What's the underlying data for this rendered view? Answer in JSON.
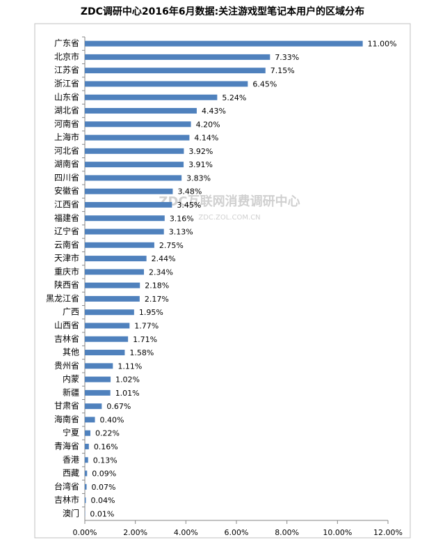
{
  "chart_data": {
    "type": "bar",
    "orientation": "horizontal",
    "title": "ZDC调研中心2016年6月数据:关注游戏型笔记本用户的区域分布",
    "watermark": [
      "ZDC互联网消费调研中心",
      "ZDC.ZOL.COM.CN"
    ],
    "categories": [
      "广东省",
      "北京市",
      "江苏省",
      "浙江省",
      "山东省",
      "湖北省",
      "河南省",
      "上海市",
      "河北省",
      "湖南省",
      "四川省",
      "安徽省",
      "江西省",
      "福建省",
      "辽宁省",
      "云南省",
      "天津市",
      "重庆市",
      "陕西省",
      "黑龙江省",
      "广西",
      "山西省",
      "吉林省",
      "其他",
      "贵州省",
      "内蒙",
      "新疆",
      "甘肃省",
      "海南省",
      "宁夏",
      "青海省",
      "香港",
      "西藏",
      "台湾省",
      "吉林市",
      "澳门"
    ],
    "values": [
      11.0,
      7.33,
      7.15,
      6.45,
      5.24,
      4.43,
      4.2,
      4.14,
      3.92,
      3.91,
      3.83,
      3.48,
      3.45,
      3.16,
      3.13,
      2.75,
      2.44,
      2.34,
      2.18,
      2.17,
      1.95,
      1.77,
      1.71,
      1.58,
      1.11,
      1.02,
      1.01,
      0.67,
      0.4,
      0.22,
      0.16,
      0.13,
      0.09,
      0.07,
      0.04,
      0.01
    ],
    "value_labels": [
      "11.00%",
      "7.33%",
      "7.15%",
      "6.45%",
      "5.24%",
      "4.43%",
      "4.20%",
      "4.14%",
      "3.92%",
      "3.91%",
      "3.83%",
      "3.48%",
      "3.45%",
      "3.16%",
      "3.13%",
      "2.75%",
      "2.44%",
      "2.34%",
      "2.18%",
      "2.17%",
      "1.95%",
      "1.77%",
      "1.71%",
      "1.58%",
      "1.11%",
      "1.02%",
      "1.01%",
      "0.67%",
      "0.40%",
      "0.22%",
      "0.16%",
      "0.13%",
      "0.09%",
      "0.07%",
      "0.04%",
      "0.01%"
    ],
    "color": "#4f81bd",
    "xlim": [
      0,
      12
    ],
    "xticks": [
      {
        "value": 0,
        "label": "0.00%"
      },
      {
        "value": 2,
        "label": "2.00%"
      },
      {
        "value": 4,
        "label": "4.00%"
      },
      {
        "value": 6,
        "label": "6.00%"
      },
      {
        "value": 8,
        "label": "8.00%"
      },
      {
        "value": 10,
        "label": "10.00%"
      },
      {
        "value": 12,
        "label": "12.00%"
      }
    ],
    "grid": false
  }
}
